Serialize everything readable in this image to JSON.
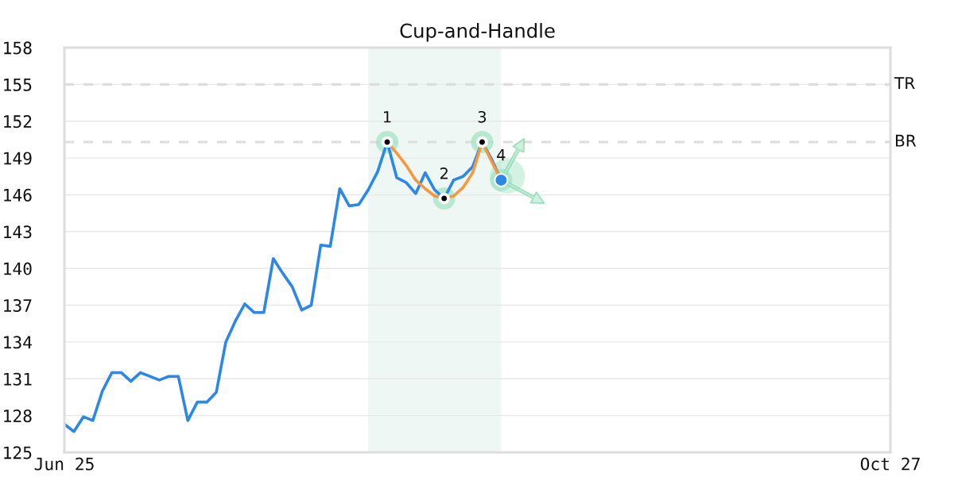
{
  "chart_data": {
    "type": "line",
    "title": "Cup-and-Handle",
    "categories": [
      "Jun 25",
      null,
      null,
      null,
      null,
      null,
      null,
      null,
      null,
      null,
      null,
      null,
      null,
      null,
      null,
      null,
      null,
      null,
      null,
      null,
      null,
      null,
      null,
      null,
      null,
      null,
      null,
      null,
      null,
      null,
      null,
      null,
      null,
      null,
      null,
      null,
      null,
      null,
      null,
      null,
      null,
      null,
      null,
      null,
      null,
      null,
      null,
      null,
      null,
      null,
      null,
      null,
      null,
      null,
      null,
      null,
      null,
      null,
      null,
      null,
      null,
      null,
      null,
      null,
      null,
      null,
      null,
      null,
      null,
      null,
      null,
      null,
      null,
      null,
      null,
      null,
      null,
      null,
      null,
      null,
      null,
      null,
      null,
      null,
      null,
      null,
      null,
      "Oct 27"
    ],
    "ylim": [
      125,
      158
    ],
    "yticks": [
      125,
      128,
      131,
      134,
      137,
      140,
      143,
      146,
      149,
      152,
      155,
      158
    ],
    "grid": "y",
    "series": [
      {
        "color": "#2b87e8",
        "values": [
          127.3,
          126.7,
          127.9,
          127.6,
          130.0,
          131.5,
          131.5,
          130.8,
          131.5,
          131.2,
          130.9,
          131.2,
          131.2,
          127.6,
          129.1,
          129.1,
          129.9,
          134.0,
          135.7,
          137.1,
          136.4,
          136.4,
          140.8,
          139.6,
          138.5,
          136.6,
          137.0,
          141.9,
          141.8,
          146.5,
          145.1,
          145.2,
          146.4,
          147.9,
          150.3,
          147.4,
          147.0,
          146.1,
          147.8,
          146.4,
          145.7,
          147.2,
          147.5,
          148.3,
          150.3,
          148.9,
          147.2,
          null,
          null,
          null,
          null,
          null,
          null,
          null,
          null,
          null,
          null,
          null,
          null,
          null,
          null,
          null,
          null,
          null,
          null,
          null,
          null,
          null,
          null,
          null,
          null,
          null,
          null,
          null,
          null,
          null,
          null,
          null,
          null,
          null,
          null,
          null,
          null,
          null,
          null,
          null,
          null,
          null
        ]
      },
      {
        "color": "#f7983f",
        "values": [
          null,
          null,
          null,
          null,
          null,
          null,
          null,
          null,
          null,
          null,
          null,
          null,
          null,
          null,
          null,
          null,
          null,
          null,
          null,
          null,
          null,
          null,
          null,
          null,
          null,
          null,
          null,
          null,
          null,
          null,
          null,
          null,
          null,
          null,
          150.3,
          149.4,
          148.4,
          147.2,
          146.5,
          145.9,
          145.7,
          145.9,
          146.6,
          147.8,
          150.3,
          148.7,
          147.2,
          null,
          null,
          null,
          null,
          null,
          null,
          null,
          null,
          null,
          null,
          null,
          null,
          null,
          null,
          null,
          null,
          null,
          null,
          null,
          null,
          null,
          null,
          null,
          null,
          null,
          null,
          null,
          null,
          null,
          null,
          null,
          null,
          null,
          null,
          null,
          null,
          null,
          null,
          null,
          null,
          null
        ]
      },
      {
        "type": "scatter",
        "color": "#000000",
        "values": [
          null,
          null,
          null,
          null,
          null,
          null,
          null,
          null,
          null,
          null,
          null,
          null,
          null,
          null,
          null,
          null,
          null,
          null,
          null,
          null,
          null,
          null,
          null,
          null,
          null,
          null,
          null,
          null,
          null,
          null,
          null,
          null,
          null,
          null,
          150.3,
          null,
          null,
          null,
          null,
          null,
          145.7,
          null,
          null,
          null,
          150.3,
          null,
          null,
          null,
          null,
          null,
          null,
          null,
          null,
          null,
          null,
          null,
          null,
          null,
          null,
          null,
          null,
          null,
          null,
          null,
          null,
          null,
          null,
          null,
          null,
          null,
          null,
          null,
          null,
          null,
          null,
          null,
          null,
          null,
          null,
          null,
          null,
          null,
          null,
          null,
          null,
          null,
          null,
          null
        ]
      },
      {
        "type": "scatter",
        "color": "#2b87e8",
        "values": [
          null,
          null,
          null,
          null,
          null,
          null,
          null,
          null,
          null,
          null,
          null,
          null,
          null,
          null,
          null,
          null,
          null,
          null,
          null,
          null,
          null,
          null,
          null,
          null,
          null,
          null,
          null,
          null,
          null,
          null,
          null,
          null,
          null,
          null,
          null,
          null,
          null,
          null,
          null,
          null,
          null,
          null,
          null,
          null,
          null,
          null,
          147.2,
          null,
          null,
          null,
          null,
          null,
          null,
          null,
          null,
          null,
          null,
          null,
          null,
          null,
          null,
          null,
          null,
          null,
          null,
          null,
          null,
          null,
          null,
          null,
          null,
          null,
          null,
          null,
          null,
          null,
          null,
          null,
          null,
          null,
          null,
          null,
          null,
          null,
          null,
          null,
          null,
          null
        ]
      }
    ],
    "ref_lines": [
      {
        "axis": "y",
        "value": 155,
        "label": "TR",
        "color": "#dddddd",
        "line_style": "dashed"
      },
      {
        "axis": "y",
        "value": 150.3,
        "label": "BR",
        "color": "#dddddd",
        "line_style": "dashed"
      }
    ],
    "annotations": [
      {
        "text": "1",
        "y": 150.3
      },
      {
        "text": "2",
        "y": 145.7
      },
      {
        "text": "3",
        "y": 150.3
      },
      {
        "text": "4",
        "y": 147.2
      }
    ]
  }
}
